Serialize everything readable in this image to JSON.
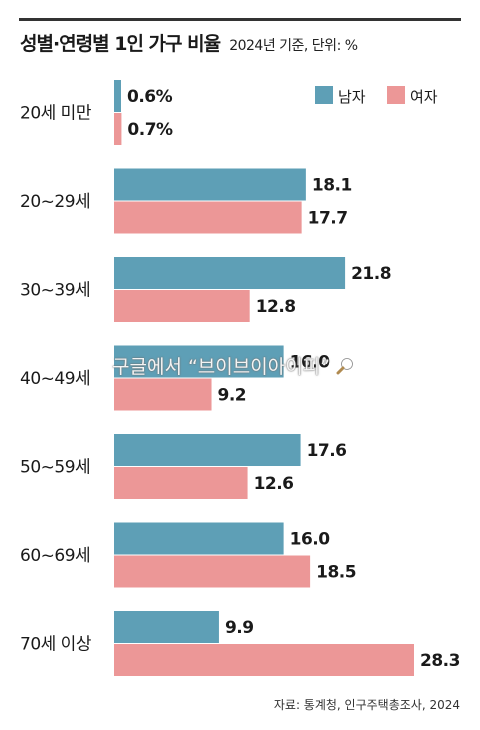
{
  "title": "성별·연령별 1인 가구 비율",
  "subtitle": "2024년 기준, 단위: %",
  "source": "자료: 통계청, 인구주택총조사, 2024",
  "watermark": "구글에서 “브이브이아이피”",
  "colors": {
    "male": "#5e9fb6",
    "female": "#ec9797"
  },
  "legend": {
    "male": "남자",
    "female": "여자"
  },
  "chart_data": {
    "type": "bar",
    "orientation": "horizontal",
    "categories": [
      "20세 미만",
      "20~29세",
      "30~39세",
      "40~49세",
      "50~59세",
      "60~69세",
      "70세 이상"
    ],
    "series": [
      {
        "name": "남자",
        "values": [
          0.6,
          18.1,
          21.8,
          16.0,
          17.6,
          16.0,
          9.9
        ],
        "labels": [
          "0.6%",
          "18.1",
          "21.8",
          "16.0",
          "17.6",
          "16.0",
          "9.9"
        ]
      },
      {
        "name": "여자",
        "values": [
          0.7,
          17.7,
          12.8,
          9.2,
          12.6,
          18.5,
          28.3
        ],
        "labels": [
          "0.7%",
          "17.7",
          "12.8",
          "9.2",
          "12.6",
          "18.5",
          "28.3"
        ]
      }
    ],
    "xlim": [
      0,
      28.3
    ],
    "grid": false,
    "legend_position": "top-right"
  }
}
